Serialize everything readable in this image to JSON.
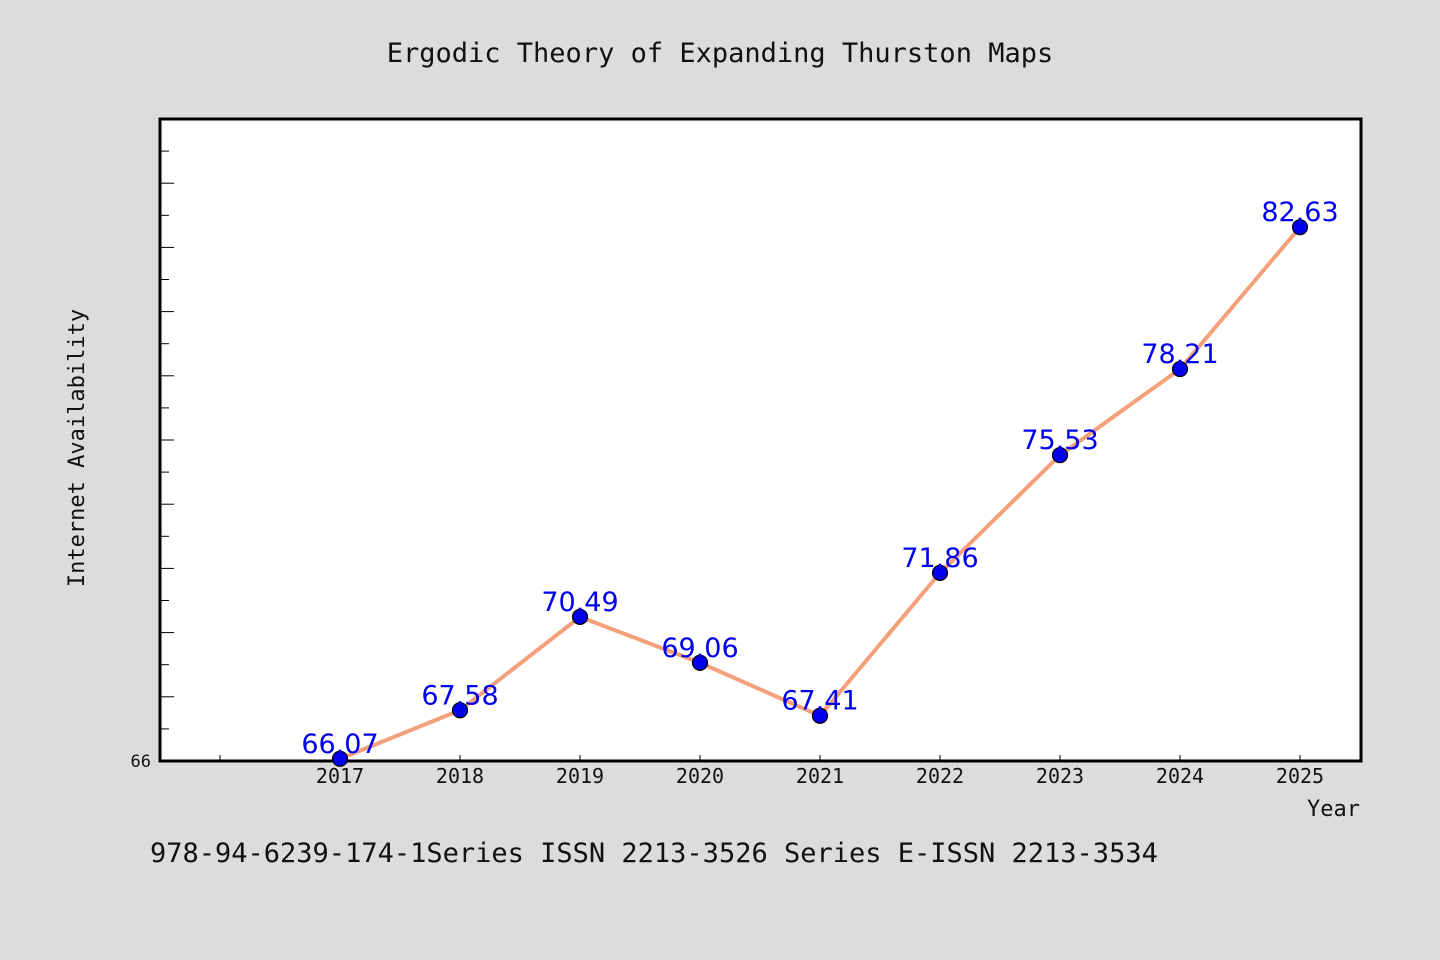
{
  "chart_data": {
    "type": "line",
    "title": "Ergodic Theory of Expanding Thurston Maps",
    "xlabel": "Year",
    "ylabel": "Internet Availability",
    "categories": [
      "2017",
      "2018",
      "2019",
      "2020",
      "2021",
      "2022",
      "2023",
      "2024",
      "2025"
    ],
    "series": [
      {
        "values": [
          66.07,
          67.58,
          70.49,
          69.06,
          67.41,
          71.86,
          75.53,
          78.21,
          82.63
        ],
        "labels": [
          "66.07",
          "67.58",
          "70.49",
          "69.06",
          "67.41",
          "71.86",
          "75.53",
          "78.21",
          "82.63"
        ]
      }
    ],
    "ylim": [
      66,
      86
    ],
    "yticks_labeled": [
      "66"
    ],
    "grid": false,
    "line_color": "#f4a07a",
    "marker_color": "#0000ee",
    "label_color": "#0000ee",
    "plot_background": "#ffffff",
    "page_background": "#dcdcdc"
  },
  "footer": "978-94-6239-174-1Series ISSN 2213-3526 Series E-ISSN 2213-3534"
}
